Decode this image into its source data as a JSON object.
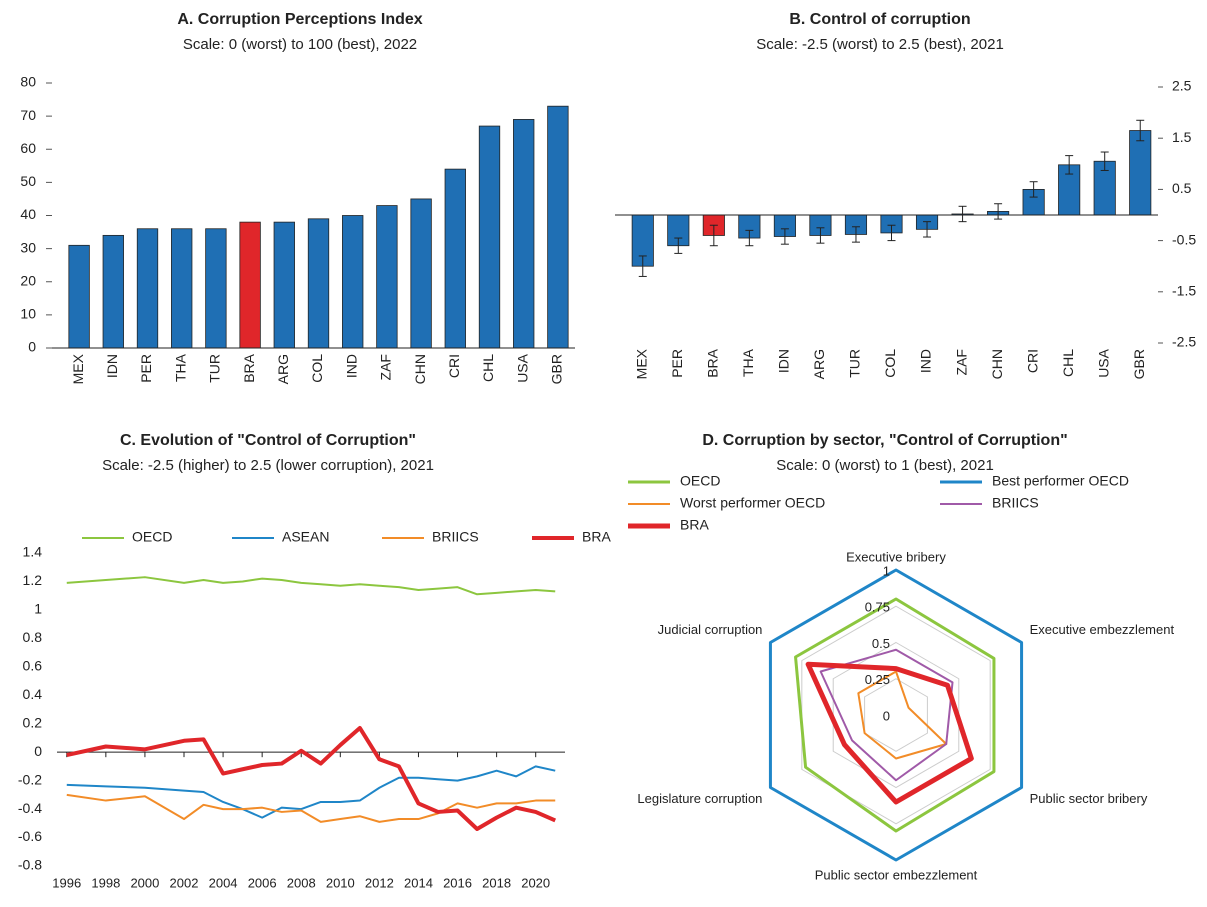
{
  "chart_data": [
    {
      "type": "bar",
      "title": "A. Corruption Perceptions Index",
      "subtitle": "Scale: 0 (worst) to 100 (best), 2022",
      "categories": [
        "MEX",
        "IDN",
        "PER",
        "THA",
        "TUR",
        "BRA",
        "ARG",
        "COL",
        "IND",
        "ZAF",
        "CHN",
        "CRI",
        "CHL",
        "USA",
        "GBR"
      ],
      "values": [
        31,
        34,
        36,
        36,
        36,
        38,
        38,
        39,
        40,
        43,
        45,
        54,
        67,
        69,
        73
      ],
      "colors": [
        "#1f6fb4",
        "#1f6fb4",
        "#1f6fb4",
        "#1f6fb4",
        "#1f6fb4",
        "#e0262a",
        "#1f6fb4",
        "#1f6fb4",
        "#1f6fb4",
        "#1f6fb4",
        "#1f6fb4",
        "#1f6fb4",
        "#1f6fb4",
        "#1f6fb4",
        "#1f6fb4"
      ],
      "ylim": [
        0,
        80
      ],
      "yticks": [
        0,
        10,
        20,
        30,
        40,
        50,
        60,
        70,
        80
      ],
      "y_axis_side": "left"
    },
    {
      "type": "bar",
      "title": "B. Control of corruption",
      "subtitle": "Scale: -2.5 (worst) to 2.5 (best), 2021",
      "categories": [
        "MEX",
        "PER",
        "BRA",
        "THA",
        "IDN",
        "ARG",
        "TUR",
        "COL",
        "IND",
        "ZAF",
        "CHN",
        "CRI",
        "CHL",
        "USA",
        "GBR"
      ],
      "values": [
        -1.0,
        -0.6,
        -0.4,
        -0.45,
        -0.42,
        -0.4,
        -0.38,
        -0.35,
        -0.28,
        0.02,
        0.07,
        0.5,
        0.98,
        1.05,
        1.65
      ],
      "errors": [
        0.2,
        0.15,
        0.2,
        0.15,
        0.15,
        0.15,
        0.15,
        0.15,
        0.15,
        0.15,
        0.15,
        0.15,
        0.18,
        0.18,
        0.2
      ],
      "colors": [
        "#1f6fb4",
        "#1f6fb4",
        "#e0262a",
        "#1f6fb4",
        "#1f6fb4",
        "#1f6fb4",
        "#1f6fb4",
        "#1f6fb4",
        "#1f6fb4",
        "#1f6fb4",
        "#1f6fb4",
        "#1f6fb4",
        "#1f6fb4",
        "#1f6fb4",
        "#1f6fb4"
      ],
      "ylim": [
        -2.5,
        2.5
      ],
      "yticks": [
        -2.5,
        -1.5,
        -0.5,
        0.5,
        1.5,
        2.5
      ],
      "y_axis_side": "right"
    },
    {
      "type": "line",
      "title": "C. Evolution of \"Control of Corruption\"",
      "subtitle": "Scale: -2.5 (higher) to 2.5 (lower corruption), 2021",
      "x": [
        1996,
        1998,
        2000,
        2002,
        2003,
        2004,
        2005,
        2006,
        2007,
        2008,
        2009,
        2010,
        2011,
        2012,
        2013,
        2014,
        2015,
        2016,
        2017,
        2018,
        2019,
        2020,
        2021
      ],
      "series": [
        {
          "name": "OECD",
          "color": "#8cc63f",
          "width": 2,
          "values": [
            1.19,
            1.21,
            1.23,
            1.19,
            1.21,
            1.19,
            1.2,
            1.22,
            1.21,
            1.19,
            1.18,
            1.17,
            1.18,
            1.17,
            1.16,
            1.14,
            1.15,
            1.16,
            1.11,
            1.12,
            1.13,
            1.14,
            1.13
          ]
        },
        {
          "name": "ASEAN",
          "color": "#1f86c8",
          "width": 2,
          "values": [
            -0.23,
            -0.24,
            -0.25,
            -0.27,
            -0.28,
            -0.35,
            -0.4,
            -0.46,
            -0.39,
            -0.4,
            -0.35,
            -0.35,
            -0.34,
            -0.25,
            -0.18,
            -0.18,
            -0.19,
            -0.2,
            -0.17,
            -0.13,
            -0.17,
            -0.1,
            -0.13
          ]
        },
        {
          "name": "BRIICS",
          "color": "#f28c28",
          "width": 2,
          "values": [
            -0.3,
            -0.34,
            -0.31,
            -0.47,
            -0.37,
            -0.4,
            -0.4,
            -0.39,
            -0.42,
            -0.41,
            -0.49,
            -0.47,
            -0.45,
            -0.49,
            -0.47,
            -0.47,
            -0.43,
            -0.36,
            -0.39,
            -0.36,
            -0.36,
            -0.34,
            -0.34
          ]
        },
        {
          "name": "BRA",
          "color": "#e0262a",
          "width": 4,
          "values": [
            -0.02,
            0.04,
            0.02,
            0.08,
            0.09,
            -0.15,
            -0.12,
            -0.09,
            -0.08,
            0.01,
            -0.08,
            0.05,
            0.17,
            -0.05,
            -0.1,
            -0.36,
            -0.42,
            -0.41,
            -0.54,
            -0.46,
            -0.39,
            -0.42,
            -0.48
          ]
        }
      ],
      "xlim": [
        1995.5,
        2021.5
      ],
      "xticks": [
        1996,
        1998,
        2000,
        2002,
        2004,
        2006,
        2008,
        2010,
        2012,
        2014,
        2016,
        2018,
        2020
      ],
      "ylim": [
        -0.8,
        1.4
      ],
      "yticks": [
        -0.8,
        -0.6,
        -0.4,
        -0.2,
        0,
        0.2,
        0.4,
        0.6,
        0.8,
        1,
        1.2,
        1.4
      ]
    },
    {
      "type": "radar",
      "title": "D. Corruption by sector, \"Control of Corruption\"",
      "subtitle": "Scale: 0 (worst) to 1 (best), 2021",
      "axes": [
        "Executive bribery",
        "Executive embezzlement",
        "Public sector bribery",
        "Public sector embezzlement",
        "Legislature corruption",
        "Judicial corruption"
      ],
      "rlim": [
        0,
        1
      ],
      "rticks": [
        0,
        0.25,
        0.5,
        0.75,
        1
      ],
      "series": [
        {
          "name": "OECD",
          "color": "#8cc63f",
          "width": 3,
          "values": [
            0.8,
            0.78,
            0.78,
            0.8,
            0.72,
            0.8
          ]
        },
        {
          "name": "Best performer OECD",
          "color": "#1f86c8",
          "width": 3,
          "values": [
            1,
            1,
            1,
            1,
            1,
            1
          ]
        },
        {
          "name": "Worst performer OECD",
          "color": "#f28c28",
          "width": 2,
          "values": [
            0.3,
            0.1,
            0.4,
            0.3,
            0.25,
            0.3
          ]
        },
        {
          "name": "BRIICS",
          "color": "#a05aa8",
          "width": 2,
          "values": [
            0.45,
            0.45,
            0.4,
            0.45,
            0.35,
            0.6
          ]
        },
        {
          "name": "BRA",
          "color": "#e0262a",
          "width": 5,
          "values": [
            0.32,
            0.41,
            0.6,
            0.6,
            0.41,
            0.7
          ]
        }
      ]
    }
  ]
}
